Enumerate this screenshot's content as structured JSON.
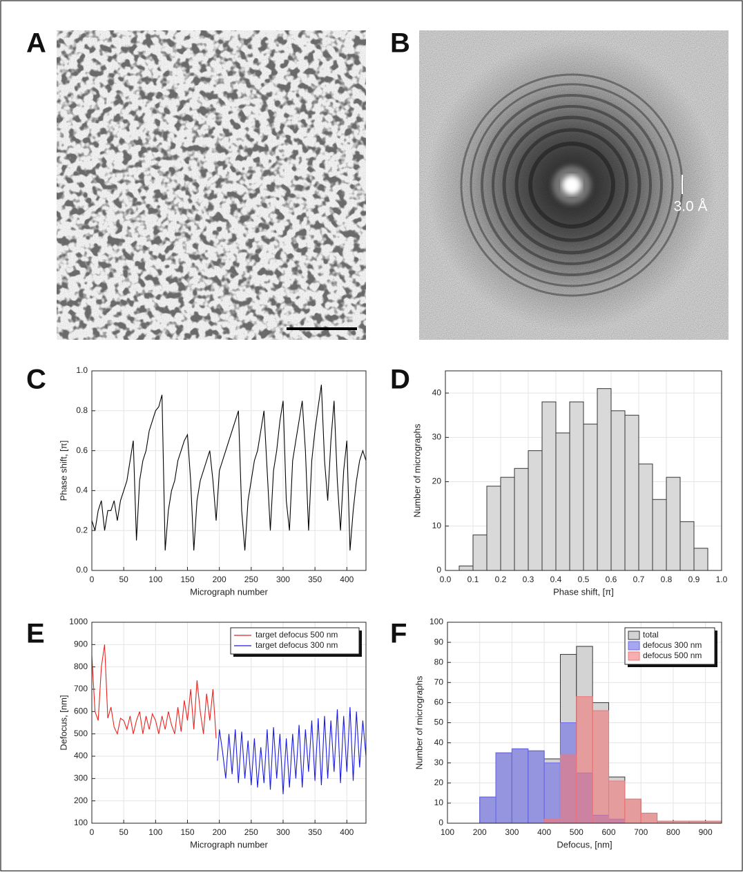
{
  "panel_labels": [
    "A",
    "B",
    "C",
    "D",
    "E",
    "F"
  ],
  "scale_label": "3.0 Å",
  "chart_data": [
    {
      "type": "line",
      "xlabel": "Micrograph number",
      "ylabel": "Phase shift, [π]",
      "color": "#000000",
      "grid": true,
      "xlim": [
        0,
        430
      ],
      "xticks": [
        0,
        50,
        100,
        150,
        200,
        250,
        300,
        350,
        400
      ],
      "ylim": [
        0,
        1
      ],
      "yticks": [
        {
          "value": 0,
          "label": "0.0"
        },
        0.2,
        0.4,
        0.6,
        0.8,
        {
          "value": 1,
          "label": "1.0"
        }
      ],
      "x": [
        0,
        5,
        10,
        15,
        20,
        25,
        30,
        35,
        40,
        45,
        50,
        55,
        60,
        65,
        70,
        75,
        80,
        85,
        90,
        95,
        100,
        105,
        110,
        115,
        120,
        125,
        130,
        135,
        140,
        145,
        150,
        155,
        160,
        165,
        170,
        175,
        180,
        185,
        190,
        195,
        200,
        205,
        210,
        215,
        220,
        225,
        230,
        235,
        240,
        245,
        250,
        255,
        260,
        265,
        270,
        275,
        280,
        285,
        290,
        295,
        300,
        305,
        310,
        315,
        320,
        325,
        330,
        335,
        340,
        345,
        350,
        355,
        360,
        365,
        370,
        375,
        380,
        385,
        390,
        395,
        400,
        405,
        410,
        415,
        420,
        425,
        430
      ],
      "values": [
        0.25,
        0.2,
        0.3,
        0.35,
        0.2,
        0.3,
        0.3,
        0.35,
        0.25,
        0.35,
        0.4,
        0.45,
        0.55,
        0.65,
        0.15,
        0.45,
        0.55,
        0.6,
        0.7,
        0.75,
        0.8,
        0.82,
        0.88,
        0.1,
        0.3,
        0.4,
        0.45,
        0.55,
        0.6,
        0.65,
        0.68,
        0.45,
        0.1,
        0.35,
        0.45,
        0.5,
        0.55,
        0.6,
        0.45,
        0.25,
        0.5,
        0.55,
        0.6,
        0.65,
        0.7,
        0.75,
        0.8,
        0.3,
        0.1,
        0.35,
        0.45,
        0.55,
        0.6,
        0.7,
        0.8,
        0.5,
        0.2,
        0.5,
        0.6,
        0.75,
        0.85,
        0.35,
        0.2,
        0.55,
        0.65,
        0.75,
        0.85,
        0.6,
        0.2,
        0.55,
        0.7,
        0.82,
        0.93,
        0.55,
        0.35,
        0.65,
        0.85,
        0.45,
        0.2,
        0.5,
        0.65,
        0.1,
        0.3,
        0.45,
        0.55,
        0.6,
        0.55
      ]
    },
    {
      "type": "histogram",
      "xlabel": "Phase shift, [π]",
      "ylabel": "Number of micrographs",
      "color": "#d9d9d9",
      "grid": true,
      "xlim": [
        0,
        1
      ],
      "xticks": [
        {
          "value": 0,
          "label": "0.0"
        },
        0.1,
        0.2,
        0.3,
        0.4,
        0.5,
        0.6,
        0.7,
        0.8,
        0.9,
        {
          "value": 1,
          "label": "1.0"
        }
      ],
      "ylim": [
        0,
        45
      ],
      "yticks": [
        0,
        10,
        20,
        30,
        40
      ],
      "bins": [
        0.05,
        0.1,
        0.15,
        0.2,
        0.25,
        0.3,
        0.35,
        0.4,
        0.45,
        0.5,
        0.55,
        0.6,
        0.65,
        0.7,
        0.75,
        0.8,
        0.85,
        0.9,
        0.95
      ],
      "values": [
        1,
        8,
        19,
        21,
        23,
        27,
        38,
        31,
        38,
        33,
        41,
        36,
        35,
        24,
        16,
        21,
        11,
        5
      ]
    },
    {
      "type": "line",
      "xlabel": "Micrograph number",
      "ylabel": "Defocus, [nm]",
      "grid": true,
      "legend": "upper right",
      "xlim": [
        0,
        430
      ],
      "xticks": [
        0,
        50,
        100,
        150,
        200,
        250,
        300,
        350,
        400
      ],
      "ylim": [
        100,
        1000
      ],
      "yticks": [
        100,
        200,
        300,
        400,
        500,
        600,
        700,
        800,
        900,
        1000
      ],
      "series": [
        {
          "name": "target defocus 500 nm",
          "color": "#e8231e",
          "x": [
            0,
            5,
            10,
            15,
            20,
            25,
            30,
            35,
            40,
            45,
            50,
            55,
            60,
            65,
            70,
            75,
            80,
            85,
            90,
            95,
            100,
            105,
            110,
            115,
            120,
            125,
            130,
            135,
            140,
            145,
            150,
            155,
            160,
            165,
            170,
            175,
            180,
            185,
            190,
            195
          ],
          "values": [
            850,
            600,
            560,
            800,
            900,
            570,
            620,
            530,
            500,
            570,
            560,
            520,
            580,
            500,
            560,
            600,
            500,
            580,
            520,
            590,
            560,
            500,
            580,
            520,
            600,
            540,
            500,
            620,
            510,
            650,
            560,
            700,
            520,
            740,
            600,
            500,
            680,
            560,
            700,
            480
          ]
        },
        {
          "name": "target defocus 300 nm",
          "color": "#1a1ae0",
          "x": [
            197,
            200,
            205,
            210,
            215,
            220,
            225,
            230,
            235,
            240,
            245,
            250,
            255,
            260,
            265,
            270,
            275,
            280,
            285,
            290,
            295,
            300,
            305,
            310,
            315,
            320,
            325,
            330,
            335,
            340,
            345,
            350,
            355,
            360,
            365,
            370,
            375,
            380,
            385,
            390,
            395,
            400,
            405,
            410,
            415,
            420,
            425,
            430
          ],
          "values": [
            380,
            520,
            420,
            300,
            500,
            320,
            520,
            280,
            510,
            300,
            470,
            270,
            480,
            260,
            440,
            280,
            520,
            250,
            530,
            300,
            500,
            230,
            480,
            260,
            500,
            300,
            540,
            260,
            520,
            330,
            560,
            290,
            570,
            270,
            580,
            300,
            560,
            330,
            610,
            280,
            580,
            330,
            620,
            290,
            600,
            350,
            560,
            400
          ]
        }
      ]
    },
    {
      "type": "histogram",
      "xlabel": "Defocus, [nm]",
      "ylabel": "Number of micrographs",
      "grid": true,
      "legend": "upper right",
      "xlim": [
        100,
        950
      ],
      "xticks": [
        100,
        200,
        300,
        400,
        500,
        600,
        700,
        800,
        900
      ],
      "ylim": [
        0,
        100
      ],
      "yticks": [
        0,
        10,
        20,
        30,
        40,
        50,
        60,
        70,
        80,
        90,
        100
      ],
      "bins": [
        200,
        250,
        300,
        350,
        400,
        450,
        500,
        550,
        600,
        650,
        700,
        750,
        800,
        850,
        900,
        950
      ],
      "series": [
        {
          "name": "total",
          "color": "#d3d3d3",
          "values": [
            13,
            35,
            37,
            36,
            32,
            84,
            88,
            60,
            23,
            12,
            5,
            1,
            1,
            1,
            1
          ]
        },
        {
          "name": "defocus 300 nm",
          "color": "#6a6ae8",
          "values": [
            13,
            35,
            37,
            36,
            30,
            50,
            25,
            4,
            2,
            0,
            0,
            0,
            0,
            0,
            0
          ]
        },
        {
          "name": "defocus 500 nm",
          "color": "#f07878",
          "values": [
            0,
            0,
            0,
            0,
            2,
            34,
            63,
            56,
            21,
            12,
            5,
            1,
            1,
            1,
            1
          ]
        }
      ]
    }
  ]
}
